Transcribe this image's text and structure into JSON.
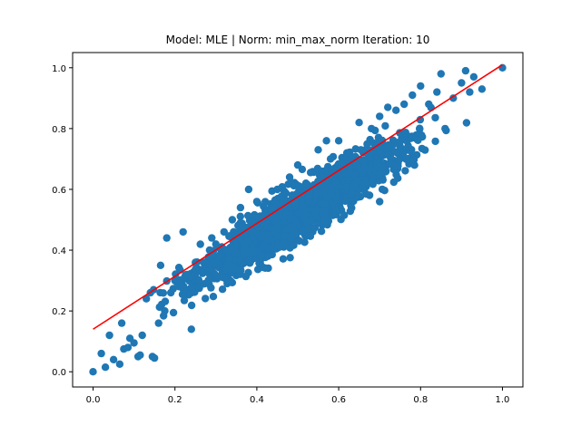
{
  "chart_data": {
    "type": "scatter",
    "title": "Model: MLE | Norm: min_max_norm  Iteration: 10",
    "xlabel": "",
    "ylabel": "",
    "xlim": [
      -0.05,
      1.05
    ],
    "ylim": [
      -0.05,
      1.05
    ],
    "xticks": [
      0.0,
      0.2,
      0.4,
      0.6,
      0.8,
      1.0
    ],
    "yticks": [
      0.0,
      0.2,
      0.4,
      0.6,
      0.8,
      1.0
    ],
    "xtick_labels": [
      "0.0",
      "0.2",
      "0.4",
      "0.6",
      "0.8",
      "1.0"
    ],
    "ytick_labels": [
      "0.0",
      "0.2",
      "0.4",
      "0.6",
      "0.8",
      "1.0"
    ],
    "grid": false,
    "colors": {
      "points": "#1f77b4",
      "fit_line": "#ff0000"
    },
    "fit_line": {
      "x": [
        0.0,
        1.0
      ],
      "y": [
        0.14,
        1.01
      ]
    },
    "points": [
      [
        0.0,
        0.0
      ],
      [
        0.02,
        0.06
      ],
      [
        0.03,
        0.015
      ],
      [
        0.04,
        0.12
      ],
      [
        0.05,
        0.04
      ],
      [
        0.065,
        0.025
      ],
      [
        0.07,
        0.16
      ],
      [
        0.075,
        0.075
      ],
      [
        0.085,
        0.08
      ],
      [
        0.09,
        0.11
      ],
      [
        0.1,
        0.095
      ],
      [
        0.11,
        0.05
      ],
      [
        0.115,
        0.055
      ],
      [
        0.12,
        0.12
      ],
      [
        0.13,
        0.24
      ],
      [
        0.14,
        0.26
      ],
      [
        0.145,
        0.05
      ],
      [
        0.15,
        0.045
      ],
      [
        0.16,
        0.16
      ],
      [
        0.165,
        0.35
      ],
      [
        0.175,
        0.2
      ],
      [
        0.18,
        0.44
      ],
      [
        0.19,
        0.26
      ],
      [
        0.2,
        0.3
      ],
      [
        0.21,
        0.28
      ],
      [
        0.22,
        0.46
      ],
      [
        0.23,
        0.32
      ],
      [
        0.24,
        0.14
      ],
      [
        0.25,
        0.36
      ],
      [
        0.27,
        0.36
      ],
      [
        0.29,
        0.44
      ],
      [
        0.3,
        0.42
      ],
      [
        0.32,
        0.46
      ],
      [
        0.34,
        0.5
      ],
      [
        0.36,
        0.54
      ],
      [
        0.38,
        0.6
      ],
      [
        0.4,
        0.56
      ],
      [
        0.42,
        0.52
      ],
      [
        0.45,
        0.6
      ],
      [
        0.48,
        0.64
      ],
      [
        0.5,
        0.68
      ],
      [
        0.52,
        0.62
      ],
      [
        0.55,
        0.73
      ],
      [
        0.57,
        0.76
      ],
      [
        0.58,
        0.7
      ],
      [
        0.6,
        0.76
      ],
      [
        0.62,
        0.72
      ],
      [
        0.65,
        0.82
      ],
      [
        0.66,
        0.72
      ],
      [
        0.68,
        0.8
      ],
      [
        0.7,
        0.84
      ],
      [
        0.72,
        0.87
      ],
      [
        0.74,
        0.86
      ],
      [
        0.76,
        0.88
      ],
      [
        0.78,
        0.91
      ],
      [
        0.8,
        0.94
      ],
      [
        0.82,
        0.88
      ],
      [
        0.84,
        0.92
      ],
      [
        0.85,
        0.98
      ],
      [
        0.86,
        0.8
      ],
      [
        0.88,
        0.9
      ],
      [
        0.9,
        0.95
      ],
      [
        0.91,
        0.99
      ],
      [
        0.92,
        0.92
      ],
      [
        0.93,
        0.97
      ],
      [
        0.95,
        0.93
      ],
      [
        1.0,
        1.0
      ]
    ],
    "point_cloud": {
      "count": 1800,
      "x_range": [
        0.1,
        0.92
      ],
      "slope": 0.87,
      "intercept": 0.085,
      "spread": 0.06
    }
  }
}
